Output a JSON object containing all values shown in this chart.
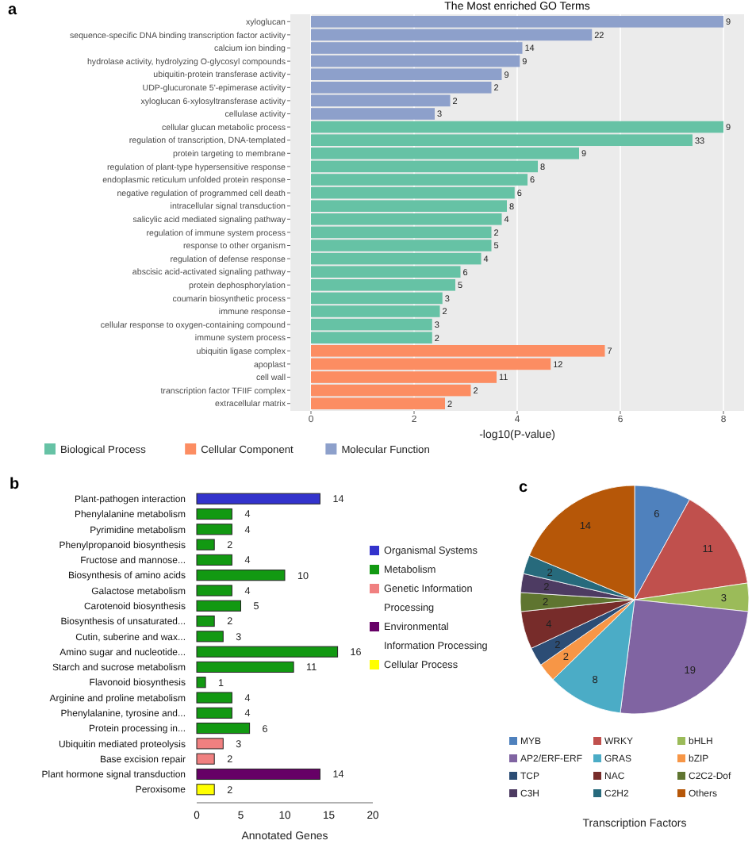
{
  "chart_data": [
    {
      "type": "bar",
      "orientation": "horizontal",
      "title": "The Most enriched GO Terms",
      "xlabel": "-log10(P-value)",
      "categories": [
        "xyloglucan",
        "sequence-specific DNA binding transcription factor activity",
        "calcium ion binding",
        "hydrolase activity, hydrolyzing O-glycosyl compounds",
        "ubiquitin-protein transferase activity",
        "UDP-glucuronate 5'-epimerase activity",
        "xyloglucan 6-xylosyltransferase activity",
        "cellulase activity",
        "cellular glucan metabolic process",
        "regulation of transcription, DNA-templated",
        "protein targeting to membrane",
        "regulation of plant-type hypersensitive response",
        "endoplasmic reticulum unfolded protein response",
        "negative regulation of programmed cell death",
        "intracellular signal transduction",
        "salicylic acid mediated signaling pathway",
        "regulation of immune system process",
        "response to other organism",
        "regulation of defense response",
        "abscisic acid-activated signaling pathway",
        "protein dephosphorylation",
        "coumarin biosynthetic process",
        "immune response",
        "cellular response to oxygen-containing compound",
        "immune system process",
        "ubiquitin ligase complex",
        "apoplast",
        "cell wall",
        "transcription factor TFIIF complex",
        "extracellular matrix"
      ],
      "series": [
        {
          "name": "Biological Process",
          "color": "#66c2a5",
          "values": [
            null,
            null,
            null,
            null,
            null,
            null,
            null,
            null,
            8.0,
            7.4,
            5.2,
            4.4,
            4.2,
            3.95,
            3.8,
            3.7,
            3.5,
            3.5,
            3.3,
            2.9,
            2.8,
            2.55,
            2.5,
            2.35,
            2.35,
            null,
            null,
            null,
            null,
            null
          ]
        },
        {
          "name": "Cellular Component",
          "color": "#fc8d62",
          "values": [
            null,
            null,
            null,
            null,
            null,
            null,
            null,
            null,
            null,
            null,
            null,
            null,
            null,
            null,
            null,
            null,
            null,
            null,
            null,
            null,
            null,
            null,
            null,
            null,
            null,
            5.7,
            4.65,
            3.6,
            3.1,
            2.6
          ]
        },
        {
          "name": "Molecular Function",
          "color": "#8da0cb",
          "values": [
            8.0,
            5.45,
            4.1,
            4.05,
            3.7,
            3.5,
            2.7,
            2.4,
            null,
            null,
            null,
            null,
            null,
            null,
            null,
            null,
            null,
            null,
            null,
            null,
            null,
            null,
            null,
            null,
            null,
            null,
            null,
            null,
            null,
            null
          ]
        }
      ],
      "annotations": [
        "a",
        {
          "text": "9",
          "x": 8.0,
          "y": "xyloglucan"
        },
        {
          "text": "22",
          "x": 5.45,
          "y": "sequence-specific DNA binding transcription factor activity"
        },
        {
          "text": "14",
          "x": 4.1,
          "y": "calcium ion binding"
        },
        {
          "text": "9",
          "x": 4.05,
          "y": "hydrolase activity, hydrolyzing O-glycosyl compounds"
        },
        {
          "text": "9",
          "x": 3.7,
          "y": "ubiquitin-protein transferase activity"
        },
        {
          "text": "2",
          "x": 3.5,
          "y": "UDP-glucuronate 5'-epimerase activity"
        },
        {
          "text": "2",
          "x": 2.7,
          "y": "xyloglucan 6-xylosyltransferase activity"
        },
        {
          "text": "3",
          "x": 2.4,
          "y": "cellulase activity"
        },
        {
          "text": "9",
          "x": 8.0,
          "y": "cellular glucan metabolic process"
        },
        {
          "text": "33",
          "x": 7.4,
          "y": "regulation of transcription, DNA-templated"
        },
        {
          "text": "9",
          "x": 5.2,
          "y": "protein targeting to membrane"
        },
        {
          "text": "8",
          "x": 4.4,
          "y": "regulation of plant-type hypersensitive response"
        },
        {
          "text": "6",
          "x": 4.2,
          "y": "endoplasmic reticulum unfolded protein response"
        },
        {
          "text": "6",
          "x": 3.95,
          "y": "negative regulation of programmed cell death"
        },
        {
          "text": "8",
          "x": 3.8,
          "y": "intracellular signal transduction"
        },
        {
          "text": "4",
          "x": 3.7,
          "y": "salicylic acid mediated signaling pathway"
        },
        {
          "text": "2",
          "x": 3.5,
          "y": "regulation of immune system process"
        },
        {
          "text": "5",
          "x": 3.5,
          "y": "response to other organism"
        },
        {
          "text": "4",
          "x": 3.3,
          "y": "regulation of defense response"
        },
        {
          "text": "6",
          "x": 2.9,
          "y": "abscisic acid-activated signaling pathway"
        },
        {
          "text": "5",
          "x": 2.8,
          "y": "protein dephosphorylation"
        },
        {
          "text": "3",
          "x": 2.55,
          "y": "coumarin biosynthetic process"
        },
        {
          "text": "2",
          "x": 2.5,
          "y": "immune response"
        },
        {
          "text": "3",
          "x": 2.35,
          "y": "cellular response to oxygen-containing compound"
        },
        {
          "text": "2",
          "x": 2.35,
          "y": "immune system process"
        },
        {
          "text": "7",
          "x": 5.7,
          "y": "ubiquitin ligase complex"
        },
        {
          "text": "12",
          "x": 4.65,
          "y": "apoplast"
        },
        {
          "text": "11",
          "x": 3.6,
          "y": "cell wall"
        },
        {
          "text": "2",
          "x": 3.1,
          "y": "transcription factor TFIIF complex"
        },
        {
          "text": "2",
          "x": 2.6,
          "y": "extracellular matrix"
        }
      ],
      "xlim": [
        -0.4,
        8.4
      ],
      "xticks": [
        0,
        2,
        4,
        6,
        8
      ],
      "grid": "x",
      "legend": "bottom"
    },
    {
      "type": "bar",
      "orientation": "horizontal",
      "xlabel": "Annotated Genes",
      "annotations": [
        "b"
      ],
      "data_labels": true,
      "categories": [
        "Plant-pathogen interaction",
        "Phenylalanine metabolism",
        "Pyrimidine metabolism",
        "Phenylpropanoid biosynthesis",
        "Fructose and mannose...",
        "Biosynthesis of amino acids",
        "Galactose metabolism",
        "Carotenoid biosynthesis",
        "Biosynthesis of unsaturated...",
        "Cutin, suberine and wax...",
        "Amino sugar and nucleotide...",
        "Starch and sucrose metabolism",
        "Flavonoid biosynthesis",
        "Arginine and proline metabolism",
        "Phenylalanine, tyrosine and...",
        "Protein processing in...",
        "Ubiquitin mediated proteolysis",
        "Base excision repair",
        "Plant hormone signal transduction",
        "Peroxisome"
      ],
      "series": [
        {
          "name": "Organismal Systems",
          "color": "#3333cc",
          "values": [
            14,
            null,
            null,
            null,
            null,
            null,
            null,
            null,
            null,
            null,
            null,
            null,
            null,
            null,
            null,
            null,
            null,
            null,
            null,
            null
          ]
        },
        {
          "name": "Metabolism",
          "color": "#129912",
          "values": [
            null,
            4,
            4,
            2,
            4,
            10,
            4,
            5,
            2,
            3,
            16,
            11,
            1,
            4,
            4,
            6,
            null,
            null,
            null,
            null
          ]
        },
        {
          "name": "Genetic Information Processing",
          "color": "#f08080",
          "values": [
            null,
            null,
            null,
            null,
            null,
            null,
            null,
            null,
            null,
            null,
            null,
            null,
            null,
            null,
            null,
            null,
            3,
            2,
            null,
            null
          ]
        },
        {
          "name": "Environmental Information  Processing",
          "color": "#660066",
          "values": [
            null,
            null,
            null,
            null,
            null,
            null,
            null,
            null,
            null,
            null,
            null,
            null,
            null,
            null,
            null,
            null,
            null,
            null,
            14,
            null
          ]
        },
        {
          "name": "Cellular Process",
          "color": "#ffff00",
          "values": [
            null,
            null,
            null,
            null,
            null,
            null,
            null,
            null,
            null,
            null,
            null,
            null,
            null,
            null,
            null,
            null,
            null,
            null,
            null,
            2
          ]
        }
      ],
      "xlim": [
        0,
        20
      ],
      "xticks": [
        0,
        5,
        10,
        15,
        20
      ],
      "grid": false,
      "legend": "right"
    },
    {
      "type": "pie",
      "xlabel": "Transcription Factors",
      "annotations": [
        "c"
      ],
      "data_labels": true,
      "legend": "bottom",
      "categories": [
        "MYB",
        "WRKY",
        "bHLH",
        "AP2/ERF-ERF",
        "GRAS",
        "bZIP",
        "TCP",
        "NAC",
        "C2C2-Dof",
        "C3H",
        "C2H2",
        "Others"
      ],
      "values": [
        6,
        11,
        3,
        19,
        8,
        2,
        2,
        4,
        2,
        2,
        2,
        14
      ],
      "colors": [
        "#4f81bd",
        "#c0504d",
        "#9bbb59",
        "#8064a2",
        "#4bacc6",
        "#f79646",
        "#2c4d75",
        "#772c2a",
        "#5f7530",
        "#4d3b62",
        "#276a7c",
        "#b65708"
      ]
    }
  ]
}
